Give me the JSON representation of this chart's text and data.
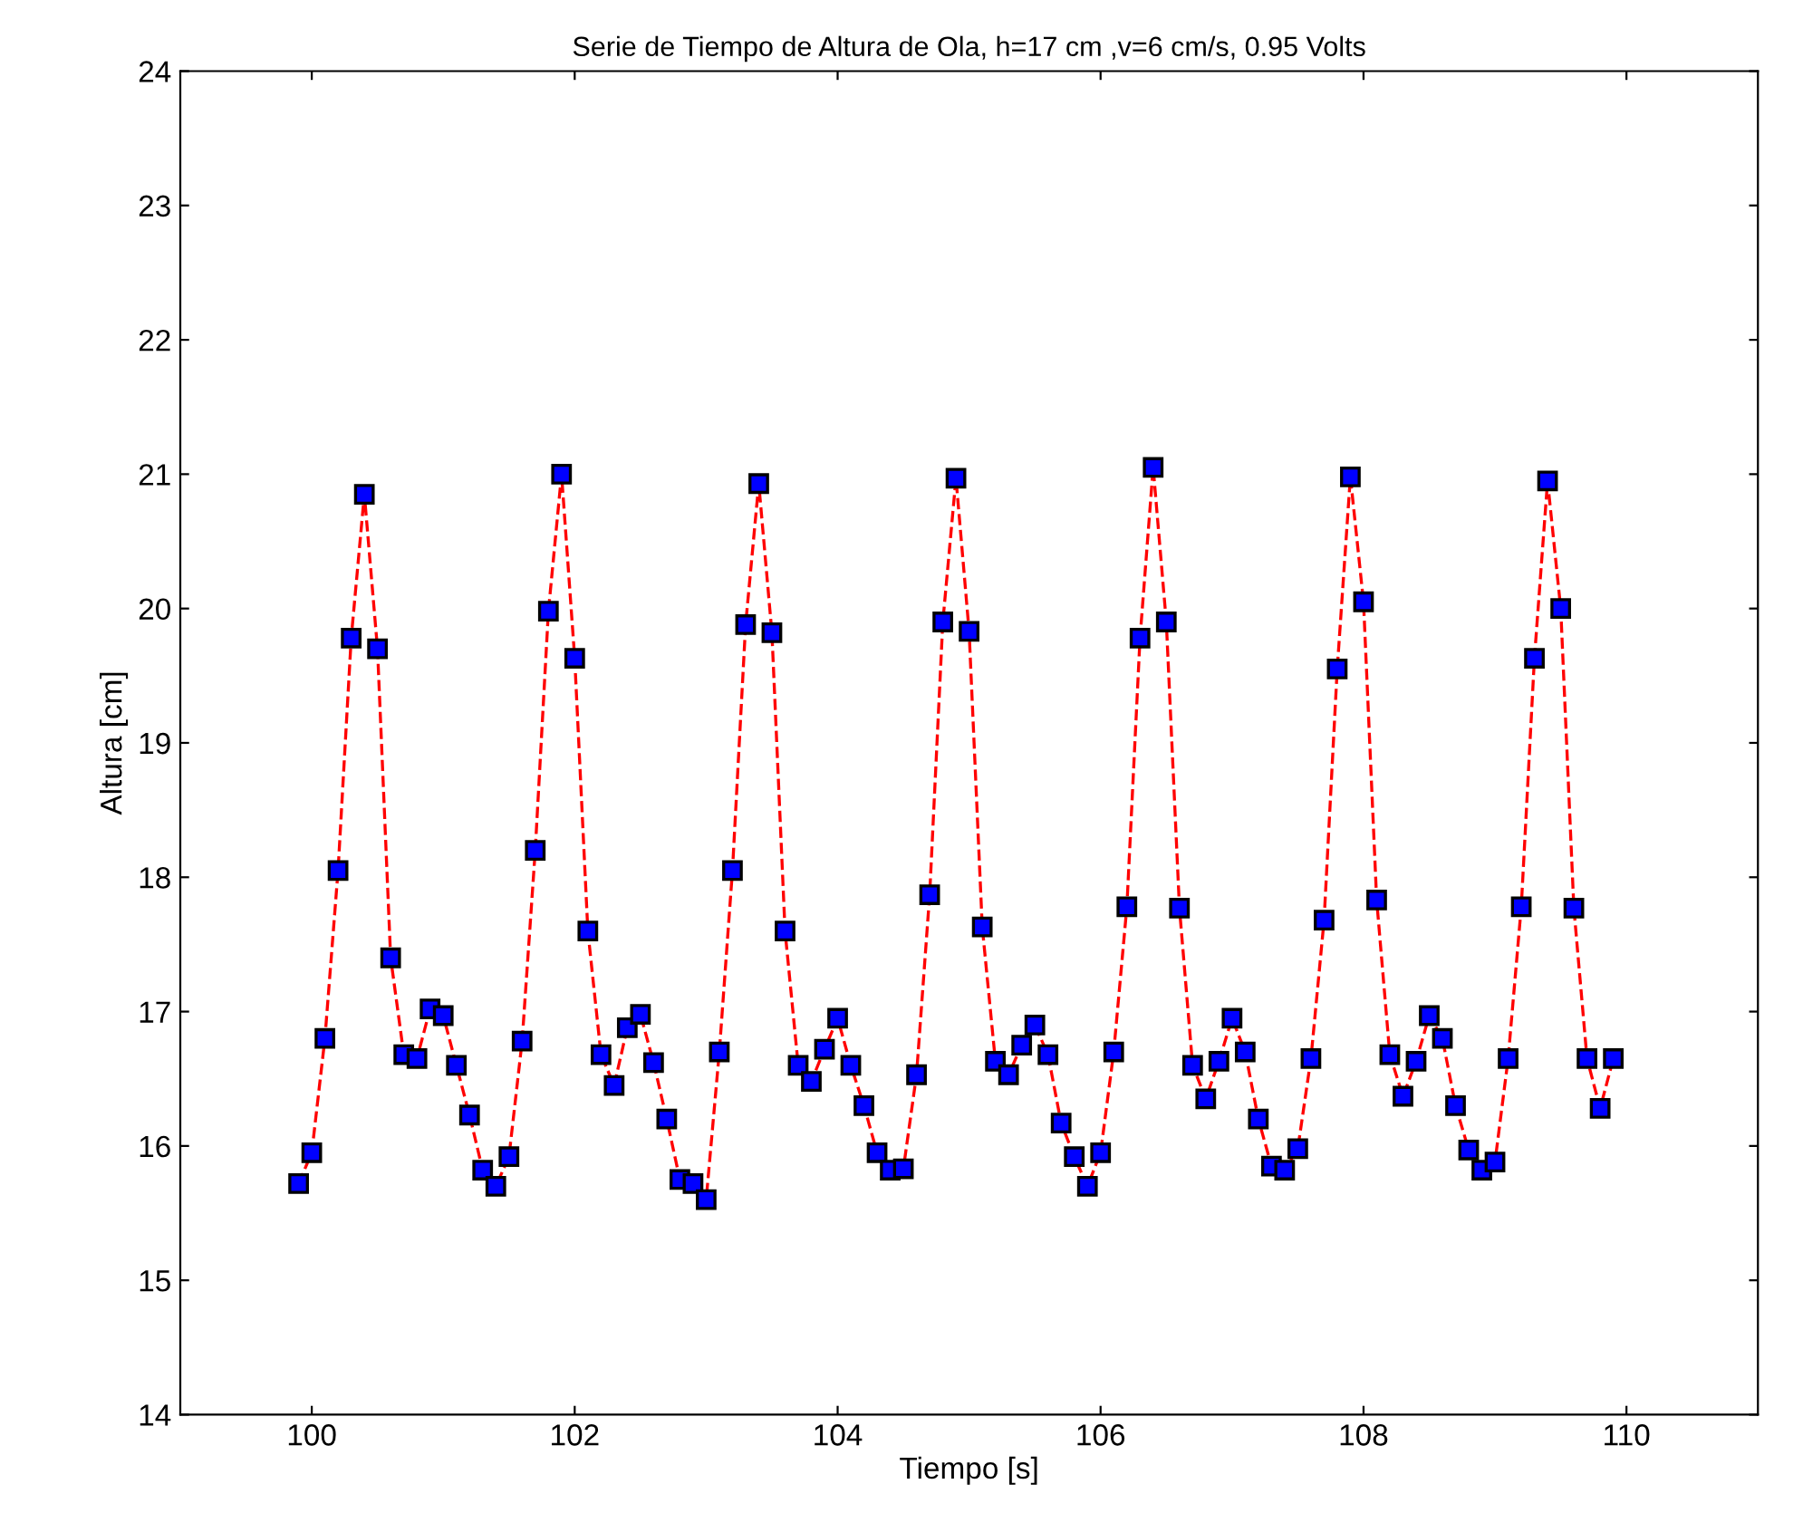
{
  "chart_data": {
    "type": "line",
    "title": "Serie de Tiempo de Altura de Ola, h=17 cm ,v=6 cm/s, 0.95 Volts",
    "xlabel": "Tiempo [s]",
    "ylabel": "Altura [cm]",
    "x": [
      99.9,
      100.0,
      100.1,
      100.2,
      100.3,
      100.4,
      100.5,
      100.6,
      100.7,
      100.8,
      100.9,
      101.0,
      101.1,
      101.2,
      101.3,
      101.4,
      101.5,
      101.6,
      101.7,
      101.8,
      101.9,
      102.0,
      102.1,
      102.2,
      102.3,
      102.4,
      102.5,
      102.6,
      102.7,
      102.8,
      102.9,
      103.0,
      103.1,
      103.2,
      103.3,
      103.4,
      103.5,
      103.6,
      103.7,
      103.8,
      103.9,
      104.0,
      104.1,
      104.2,
      104.3,
      104.4,
      104.5,
      104.6,
      104.7,
      104.8,
      104.9,
      105.0,
      105.1,
      105.2,
      105.3,
      105.4,
      105.5,
      105.6,
      105.7,
      105.8,
      105.9,
      106.0,
      106.1,
      106.2,
      106.3,
      106.4,
      106.5,
      106.6,
      106.7,
      106.8,
      106.9,
      107.0,
      107.1,
      107.2,
      107.3,
      107.4,
      107.5,
      107.6,
      107.7,
      107.8,
      107.9,
      108.0,
      108.1,
      108.2,
      108.3,
      108.4,
      108.5,
      108.6,
      108.7,
      108.8,
      108.9,
      109.0,
      109.1,
      109.2,
      109.3,
      109.4,
      109.5,
      109.6,
      109.7,
      109.8,
      109.9
    ],
    "series": [
      {
        "color": "#ff0000",
        "values": [
          15.72,
          15.95,
          16.8,
          18.05,
          19.78,
          20.85,
          19.7,
          17.4,
          16.68,
          16.65,
          17.02,
          16.97,
          16.6,
          16.23,
          15.82,
          15.7,
          15.92,
          16.78,
          18.2,
          19.98,
          21.0,
          19.63,
          17.6,
          16.68,
          16.45,
          16.88,
          16.98,
          16.62,
          16.2,
          15.75,
          15.72,
          15.6,
          16.7,
          18.05,
          19.88,
          20.93,
          19.82,
          17.6,
          16.6,
          16.48,
          16.72,
          16.95,
          16.6,
          16.3,
          15.95,
          15.82,
          15.83,
          16.53,
          17.87,
          19.9,
          20.97,
          19.83,
          17.63,
          16.63,
          16.53,
          16.75,
          16.9,
          16.68,
          16.17,
          15.92,
          15.7,
          15.95,
          16.7,
          17.78,
          19.78,
          21.05,
          19.9,
          17.77,
          16.6,
          16.35,
          16.63,
          16.95,
          16.7,
          16.2,
          15.85,
          15.82,
          15.98,
          16.65,
          17.68,
          19.55,
          20.98,
          20.05,
          17.83,
          16.68,
          16.37,
          16.63,
          16.97,
          16.8,
          16.3,
          15.97,
          15.82,
          15.88,
          16.65,
          17.78,
          19.63,
          20.95,
          20.0,
          17.77,
          16.65,
          16.28,
          16.65
        ]
      }
    ],
    "xlim": [
      99,
      111
    ],
    "xticks": [
      100,
      102,
      104,
      106,
      108,
      110
    ],
    "ylim": [
      14,
      24
    ],
    "yticks": [
      14,
      15,
      16,
      17,
      18,
      19,
      20,
      21,
      22,
      23,
      24
    ],
    "marker": "square",
    "line_style": "dashed",
    "grid": false,
    "legend": false
  }
}
